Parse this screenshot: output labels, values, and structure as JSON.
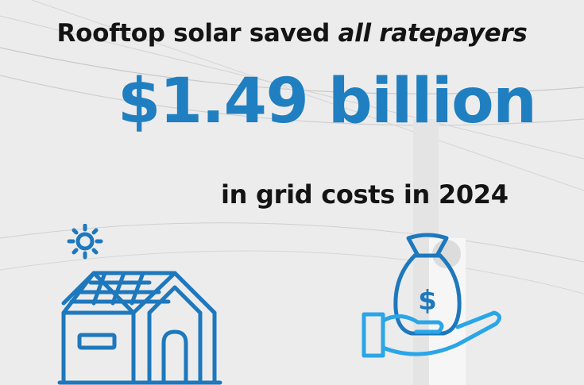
{
  "headline": {
    "prefix": "Rooftop solar saved ",
    "emphasis": "all ratepayers"
  },
  "amount": "$1.49 billion",
  "subline": "in grid costs in 2024",
  "money_symbol": "$",
  "icons": [
    "sun-icon",
    "house-solar-icon",
    "money-bag-hand-icon"
  ],
  "colors": {
    "accent_blue": "#1f7fc0",
    "icon_blue": "#1e78bd",
    "icon_light_blue": "#2aa6e8",
    "text_dark": "#141414",
    "background": "#ececec"
  }
}
